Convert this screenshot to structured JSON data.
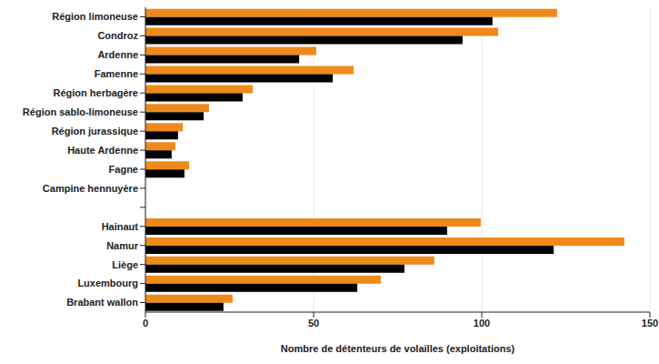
{
  "chart_data": {
    "type": "bar",
    "orientation": "horizontal",
    "xlabel": "Nombre de détenteurs de volailles (exploitations)",
    "categories": [
      "Région limoneuse",
      "Condroz",
      "Ardenne",
      "Famenne",
      "Région herbagère",
      "Région sablo-limoneuse",
      "Région jurassique",
      "Haute Ardenne",
      "Fagne",
      "Campine hennuyère",
      null,
      "Hainaut",
      "Namur",
      "Liège",
      "Luxembourg",
      "Brabant wallon"
    ],
    "series": [
      {
        "color": "#ee8a1c",
        "values": [
          122.4,
          104.9,
          50.8,
          61.9,
          31.9,
          18.9,
          11.1,
          8.9,
          13,
          0,
          null,
          99.7,
          142.4,
          85.9,
          70,
          25.9
        ]
      },
      {
        "color": "#000000",
        "values": [
          103.2,
          94.3,
          45.7,
          55.7,
          28.9,
          17.3,
          9.7,
          7.8,
          11.6,
          0,
          null,
          89.7,
          121.4,
          77,
          63,
          23.2
        ]
      }
    ],
    "xlim": [
      0,
      150
    ],
    "xticks": [
      0,
      50,
      100,
      150
    ],
    "grid": true
  }
}
